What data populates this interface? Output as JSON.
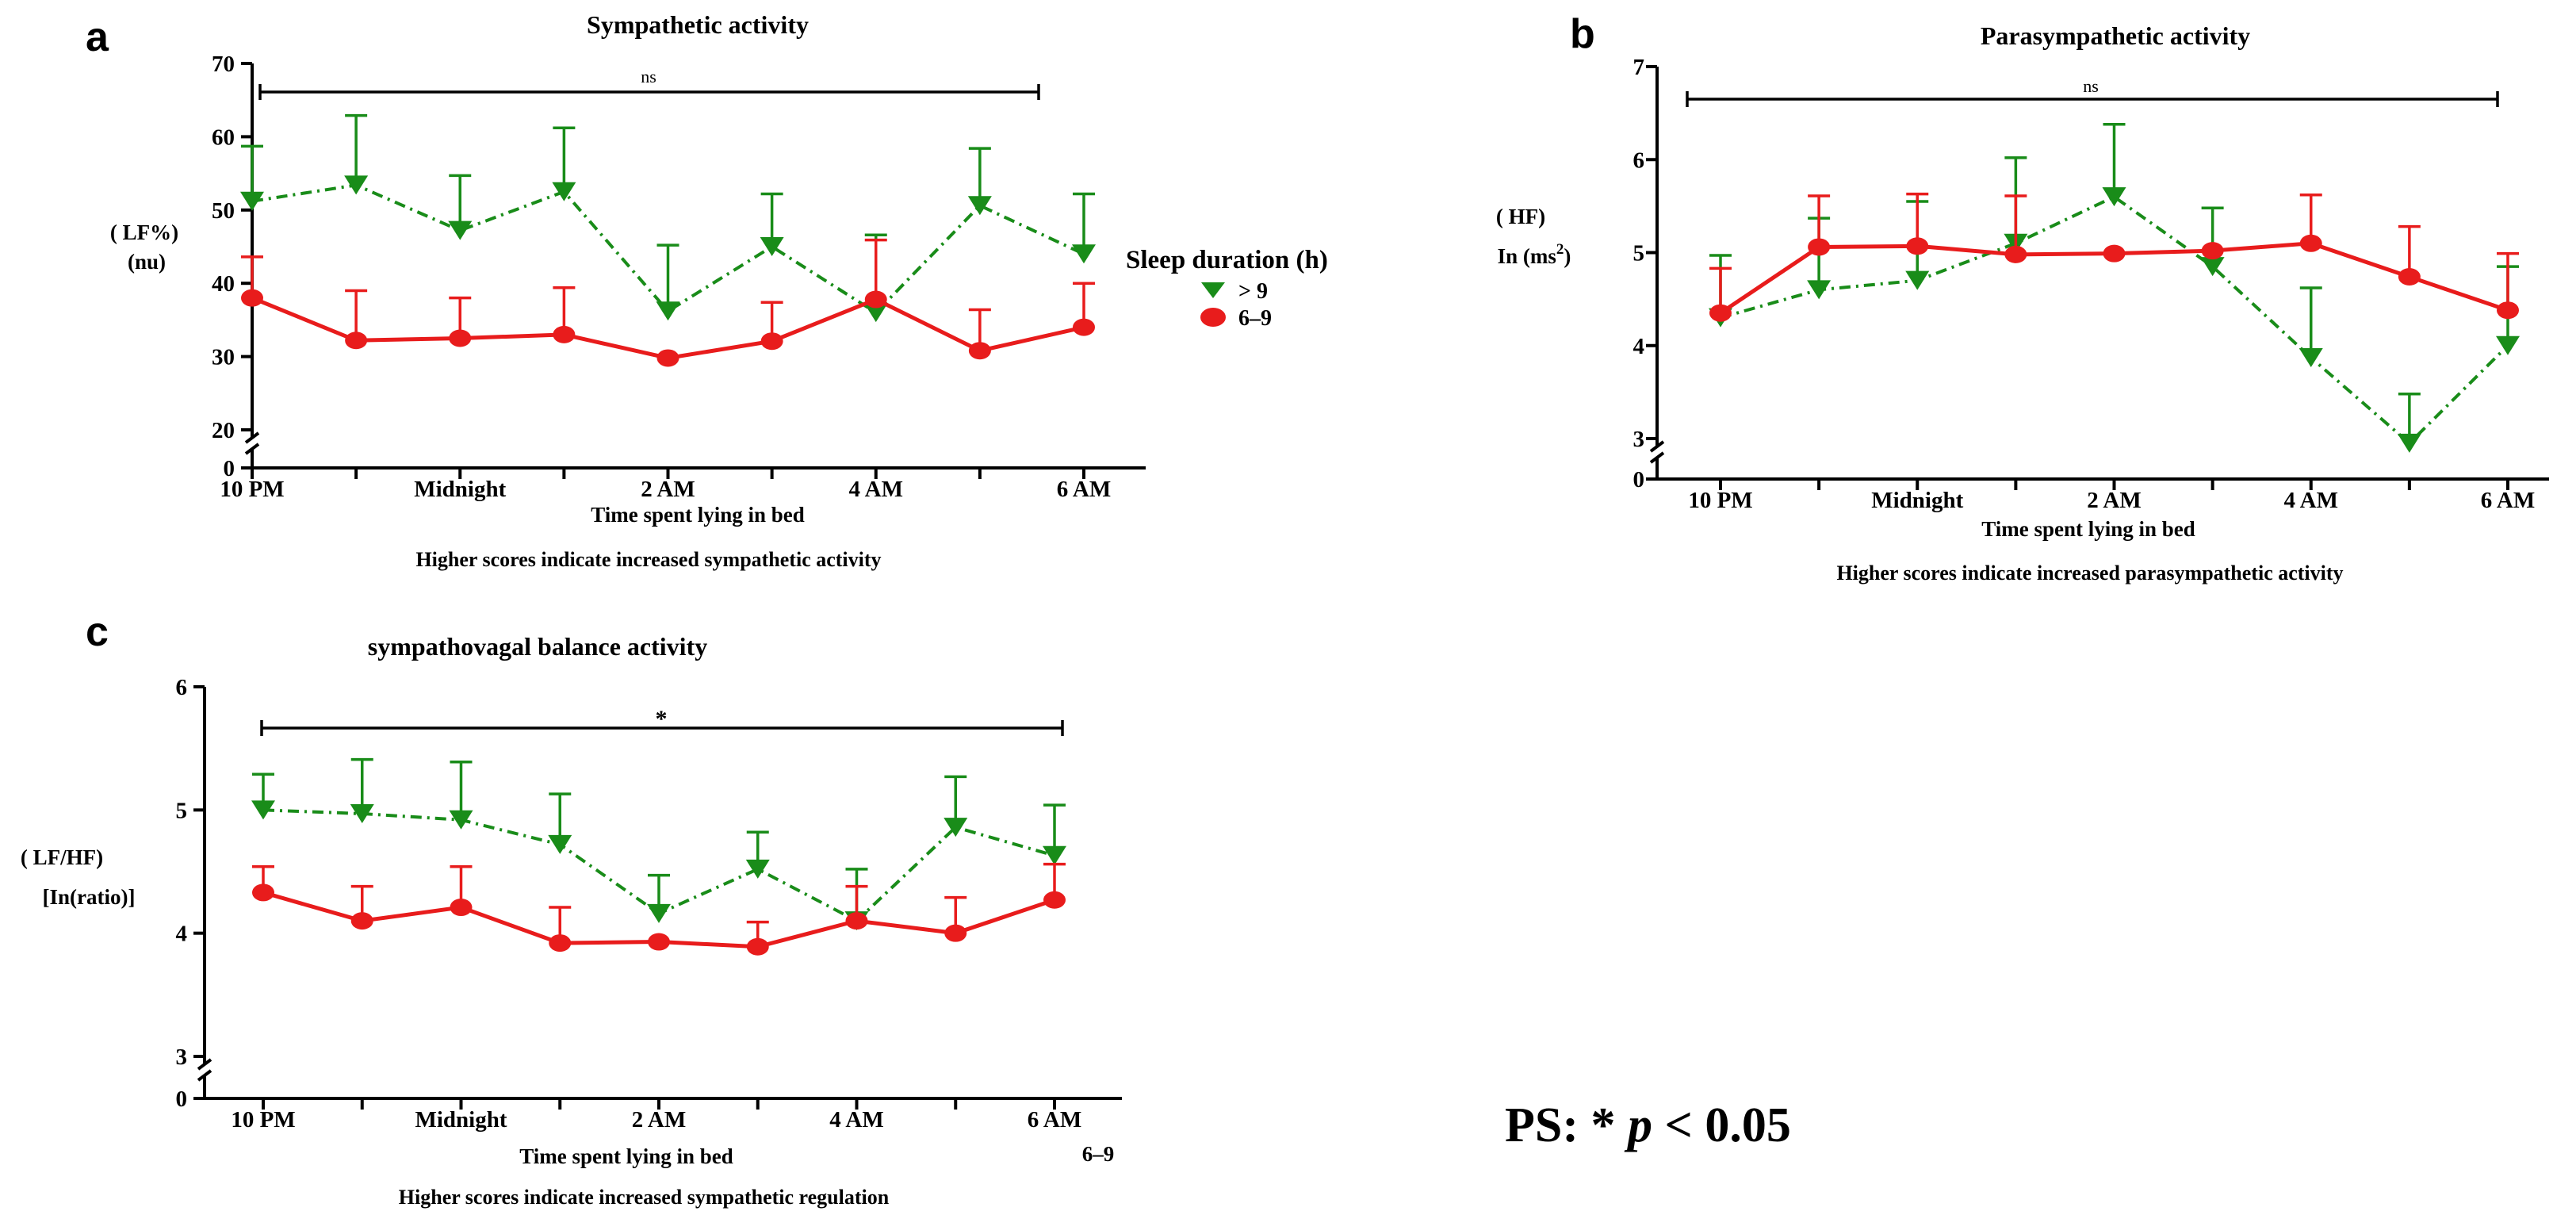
{
  "chart_data": [
    {
      "panel": "a",
      "type": "line",
      "title": "Sympathetic activity",
      "ylabel_line1": "( LF%)",
      "ylabel_line2": "(nu)",
      "xlabel": "Time spent lying in bed",
      "note": "Higher scores indicate increased sympathetic activity",
      "ylim": [
        0,
        70
      ],
      "axis_break_between": [
        0,
        20
      ],
      "yticks": [
        0,
        20,
        30,
        40,
        50,
        60,
        70
      ],
      "x": [
        0,
        1,
        2,
        3,
        4,
        5,
        6,
        7,
        8
      ],
      "xtick_positions": [
        0,
        2,
        4,
        6,
        8
      ],
      "xtick_labels": [
        "10 PM",
        "Midnight",
        "2 AM",
        "4 AM",
        "6 AM"
      ],
      "significance": "ns",
      "series": [
        {
          "name": "> 9",
          "color": "#198c19",
          "marker": "triangle-down",
          "dash": "dashdot",
          "values": [
            51.2,
            53.4,
            47.2,
            52.5,
            36.2,
            45.0,
            36.0,
            50.6,
            44.0
          ],
          "errors": [
            7.5,
            9.5,
            7.5,
            8.7,
            9.0,
            7.2,
            10.6,
            7.8,
            8.2
          ]
        },
        {
          "name": "6–9",
          "color": "#e81c1c",
          "marker": "circle",
          "dash": "solid",
          "values": [
            38.0,
            32.2,
            32.5,
            33.0,
            29.8,
            32.1,
            37.8,
            30.8,
            34.0
          ],
          "errors": [
            5.6,
            6.8,
            5.5,
            6.4,
            0.0,
            5.3,
            8.1,
            5.6,
            6.0
          ]
        }
      ]
    },
    {
      "panel": "b",
      "type": "line",
      "title": "Parasympathetic activity",
      "ylabel_line1": "( HF)",
      "ylabel_line2_base": "In (ms",
      "ylabel_line2_sup": "2",
      "ylabel_line2_end": ")",
      "xlabel": "Time spent lying in bed",
      "note": "Higher scores indicate increased parasympathetic activity",
      "ylim": [
        0,
        7
      ],
      "axis_break_between": [
        0,
        3
      ],
      "yticks": [
        0,
        3,
        4,
        5,
        6,
        7
      ],
      "x": [
        0,
        1,
        2,
        3,
        4,
        5,
        6,
        7,
        8
      ],
      "xtick_positions": [
        0,
        2,
        4,
        6,
        8
      ],
      "xtick_labels": [
        "10 PM",
        "Midnight",
        "2 AM",
        "4 AM",
        "6 AM"
      ],
      "significance": "ns",
      "series": [
        {
          "name": "> 9",
          "color": "#198c19",
          "marker": "triangle-down",
          "dash": "dashdot",
          "values": [
            4.3,
            4.6,
            4.7,
            5.1,
            5.6,
            4.85,
            3.87,
            2.95,
            4.0
          ],
          "errors": [
            0.67,
            0.77,
            0.85,
            0.92,
            0.78,
            0.63,
            0.75,
            0.53,
            0.85
          ]
        },
        {
          "name": "6–9",
          "color": "#e81c1c",
          "marker": "circle",
          "dash": "solid",
          "values": [
            4.35,
            5.06,
            5.07,
            4.98,
            4.99,
            5.02,
            5.1,
            4.74,
            4.38
          ],
          "errors": [
            0.48,
            0.55,
            0.56,
            0.63,
            0.0,
            0.0,
            0.52,
            0.54,
            0.61
          ]
        }
      ]
    },
    {
      "panel": "c",
      "type": "line",
      "title": "sympathovagal balance  activity",
      "ylabel_line1": "( LF/HF)",
      "ylabel_line2": "[In(ratio)]",
      "xlabel": "Time spent lying in bed",
      "note": "Higher scores indicate increased sympathetic regulation",
      "ylim": [
        0,
        6
      ],
      "axis_break_between": [
        0,
        3
      ],
      "yticks": [
        0,
        3,
        4,
        5,
        6
      ],
      "x": [
        0,
        1,
        2,
        3,
        4,
        5,
        6,
        7,
        8
      ],
      "xtick_positions": [
        0,
        2,
        4,
        6,
        8
      ],
      "xtick_labels": [
        "10 PM",
        "Midnight",
        "2 AM",
        "4 AM",
        "6 AM"
      ],
      "significance": "*",
      "series": [
        {
          "name": "> 9",
          "color": "#198c19",
          "marker": "triangle-down",
          "dash": "dashdot",
          "values": [
            5.0,
            4.97,
            4.92,
            4.72,
            4.16,
            4.52,
            4.1,
            4.86,
            4.63
          ],
          "errors": [
            0.29,
            0.44,
            0.47,
            0.41,
            0.31,
            0.3,
            0.42,
            0.41,
            0.41
          ]
        },
        {
          "name": "6–9",
          "color": "#e81c1c",
          "marker": "circle",
          "dash": "solid",
          "values": [
            4.33,
            4.1,
            4.21,
            3.92,
            3.93,
            3.89,
            4.1,
            4.0,
            4.27
          ],
          "errors": [
            0.21,
            0.28,
            0.33,
            0.29,
            0.0,
            0.2,
            0.28,
            0.29,
            0.29
          ]
        }
      ]
    }
  ],
  "legend": {
    "title": "Sleep duration (h)",
    "items": [
      {
        "label": "> 9",
        "color": "#198c19",
        "marker": "triangle-down"
      },
      {
        "label": "6–9",
        "color": "#e81c1c",
        "marker": "circle"
      }
    ]
  },
  "stray_label": "6–9",
  "footnote": {
    "prefix": "PS: * ",
    "p": "p",
    "suffix": " < 0.05"
  }
}
